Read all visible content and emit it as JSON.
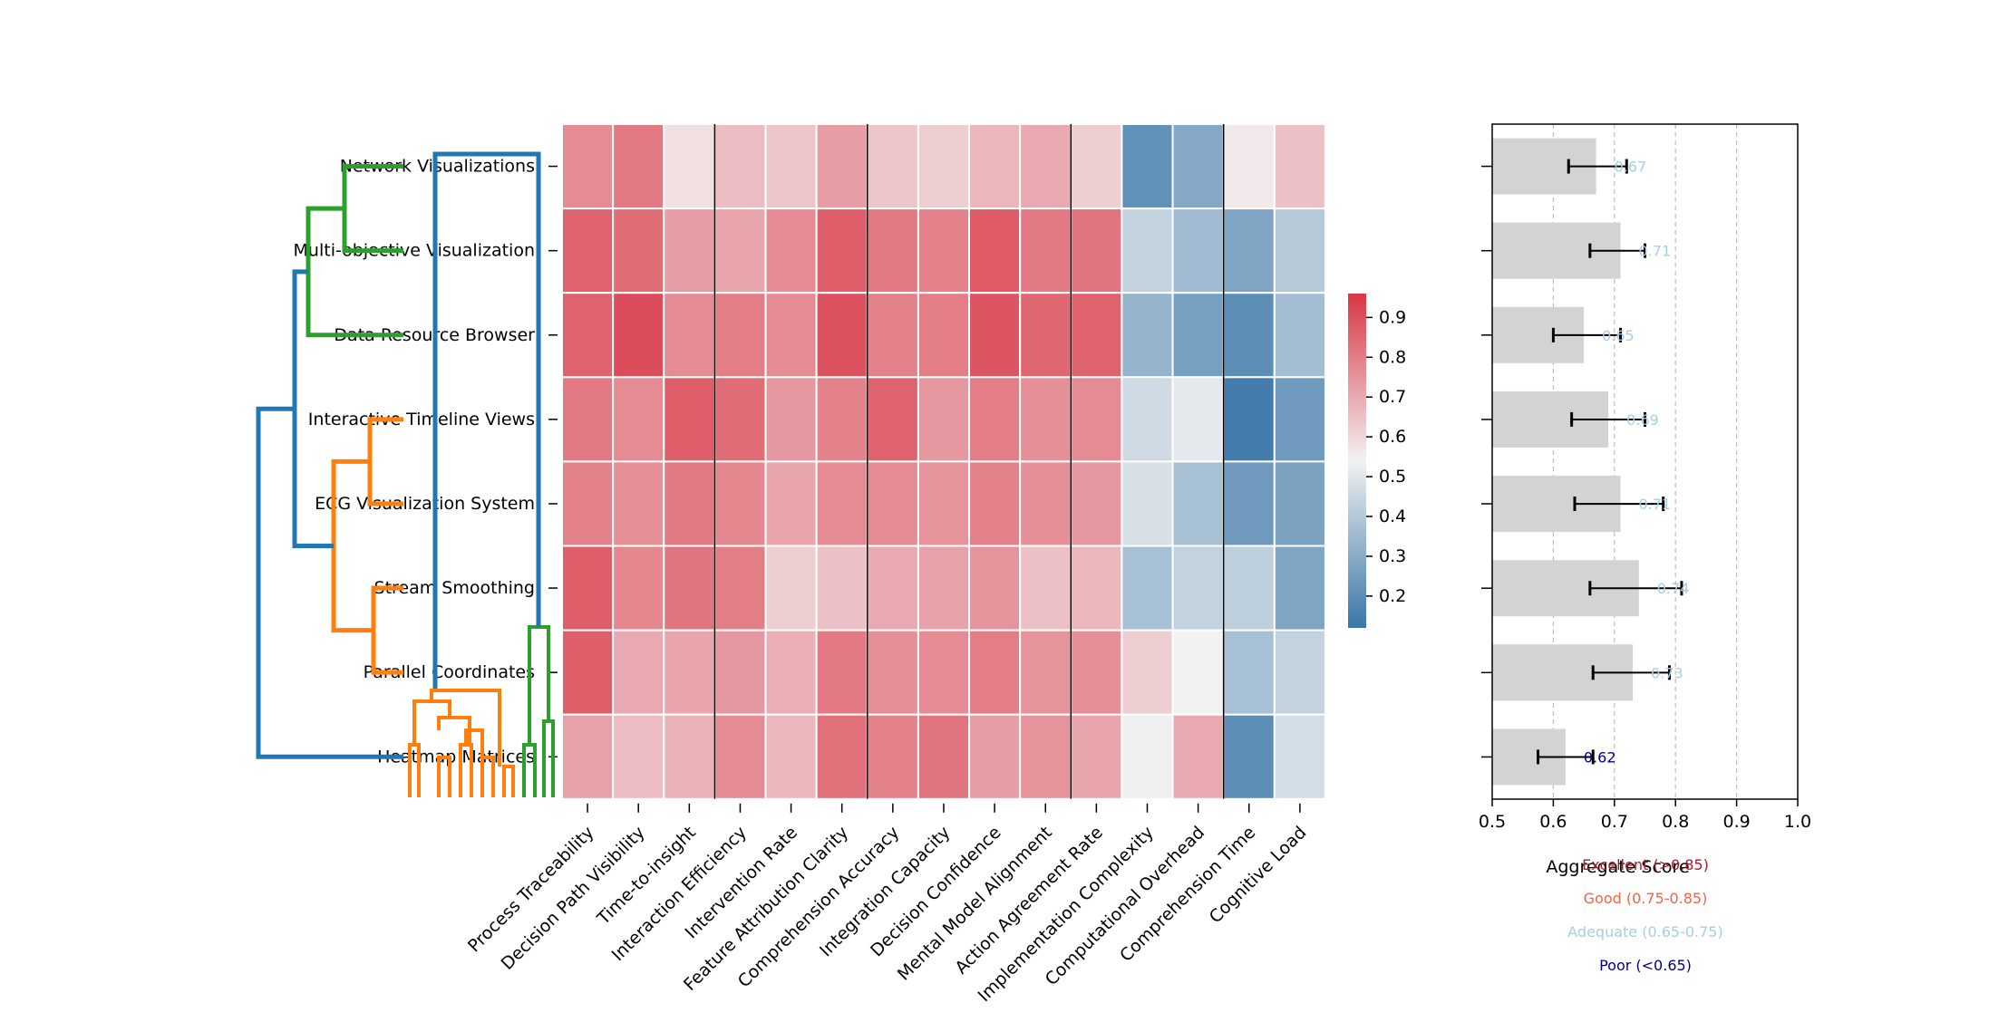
{
  "chart_data": [
    {
      "type": "heatmap",
      "title": "",
      "rows": [
        "Network Visualizations",
        "Multi-objective Visualization",
        "Data Resource Browser",
        "Interactive Timeline Views",
        "ECG Visualization System",
        "Stream Smoothing",
        "Parallel Coordinates",
        "Heatmap Matrices"
      ],
      "columns": [
        "Process Traceability",
        "Decision Path Visibility",
        "Time-to-insight",
        "Interaction Efficiency",
        "Intervention Rate",
        "Feature Attribution Clarity",
        "Comprehension Accuracy",
        "Integration Capacity",
        "Decision Confidence",
        "Mental Model Alignment",
        "Action Agreement Rate",
        "Implementation Complexity",
        "Computational Overhead",
        "Comprehension Time",
        "Cognitive Load"
      ],
      "values": [
        [
          0.77,
          0.81,
          0.58,
          0.66,
          0.64,
          0.73,
          0.64,
          0.62,
          0.67,
          0.7,
          0.62,
          0.21,
          0.29,
          0.56,
          0.65
        ],
        [
          0.86,
          0.84,
          0.73,
          0.71,
          0.77,
          0.87,
          0.81,
          0.79,
          0.88,
          0.81,
          0.82,
          0.43,
          0.35,
          0.28,
          0.4
        ],
        [
          0.86,
          0.91,
          0.77,
          0.8,
          0.77,
          0.9,
          0.79,
          0.8,
          0.89,
          0.85,
          0.86,
          0.33,
          0.26,
          0.2,
          0.36
        ],
        [
          0.81,
          0.77,
          0.87,
          0.84,
          0.74,
          0.79,
          0.86,
          0.74,
          0.8,
          0.76,
          0.77,
          0.46,
          0.51,
          0.14,
          0.24
        ],
        [
          0.79,
          0.76,
          0.81,
          0.78,
          0.71,
          0.77,
          0.77,
          0.75,
          0.79,
          0.76,
          0.74,
          0.48,
          0.37,
          0.24,
          0.27
        ],
        [
          0.87,
          0.78,
          0.82,
          0.8,
          0.62,
          0.65,
          0.7,
          0.72,
          0.75,
          0.65,
          0.67,
          0.37,
          0.43,
          0.42,
          0.28
        ],
        [
          0.87,
          0.7,
          0.71,
          0.74,
          0.69,
          0.81,
          0.76,
          0.77,
          0.8,
          0.75,
          0.76,
          0.62,
          0.54,
          0.37,
          0.43
        ],
        [
          0.72,
          0.66,
          0.68,
          0.77,
          0.67,
          0.83,
          0.79,
          0.82,
          0.73,
          0.75,
          0.71,
          0.53,
          0.7,
          0.2,
          0.47
        ]
      ],
      "group_separators_after_column": [
        2,
        5,
        9,
        12
      ],
      "colorbar": {
        "min": 0.12,
        "max": 0.96,
        "ticks": [
          0.2,
          0.3,
          0.4,
          0.5,
          0.6,
          0.7,
          0.8,
          0.9
        ],
        "low_color": "#3a76a8",
        "mid_color": "#f2f2f2",
        "high_color": "#d93645"
      }
    },
    {
      "type": "dendrogram",
      "orientation": "left",
      "leaves": [
        "Network Visualizations",
        "Multi-objective Visualization",
        "Data Resource Browser",
        "Interactive Timeline Views",
        "ECG Visualization System",
        "Stream Smoothing",
        "Parallel Coordinates",
        "Heatmap Matrices"
      ],
      "clusters": [
        {
          "name": "green-cluster",
          "color": "#2ca02c",
          "members": [
            "Network Visualizations",
            "Multi-objective Visualization",
            "Data Resource Browser"
          ]
        },
        {
          "name": "orange-cluster",
          "color": "#ff7f0e",
          "members": [
            "Interactive Timeline Views",
            "ECG Visualization System",
            "Stream Smoothing",
            "Parallel Coordinates"
          ]
        },
        {
          "name": "root",
          "color": "#1f77b4"
        }
      ]
    },
    {
      "type": "dendrogram",
      "orientation": "bottom",
      "colors": [
        "#ff7f0e",
        "#2ca02c",
        "#1f77b4"
      ]
    },
    {
      "type": "bar",
      "orientation": "horizontal",
      "categories": [
        "Network Visualizations",
        "Multi-objective Visualization",
        "Data Resource Browser",
        "Interactive Timeline Views",
        "ECG Visualization System",
        "Stream Smoothing",
        "Parallel Coordinates",
        "Heatmap Matrices"
      ],
      "values": [
        0.67,
        0.71,
        0.65,
        0.69,
        0.71,
        0.74,
        0.73,
        0.62
      ],
      "error_low": [
        0.625,
        0.66,
        0.6,
        0.63,
        0.635,
        0.66,
        0.665,
        0.575
      ],
      "error_high": [
        0.72,
        0.75,
        0.71,
        0.75,
        0.78,
        0.81,
        0.79,
        0.665
      ],
      "value_labels": [
        "0.67",
        "0.71",
        "0.65",
        "0.69",
        "0.71",
        "0.74",
        "0.73",
        "0.62"
      ],
      "label_colors": [
        "#a6cee3",
        "#a6cee3",
        "#a6cee3",
        "#a6cee3",
        "#a6cee3",
        "#a6cee3",
        "#a6cee3",
        "#00008b"
      ],
      "xlabel": "Aggregate Score",
      "xlim": [
        0.5,
        1.0
      ],
      "xticks": [
        "0.5",
        "0.6",
        "0.7",
        "0.8",
        "0.9",
        "1.0"
      ],
      "grid": true,
      "legend": [
        {
          "label": "Excellent (>0.85)",
          "color": "#b2182b"
        },
        {
          "label": "Good (0.75-0.85)",
          "color": "#ef6548"
        },
        {
          "label": "Adequate (0.65-0.75)",
          "color": "#a6cee3"
        },
        {
          "label": "Poor (<0.65)",
          "color": "#00008b"
        }
      ]
    }
  ]
}
